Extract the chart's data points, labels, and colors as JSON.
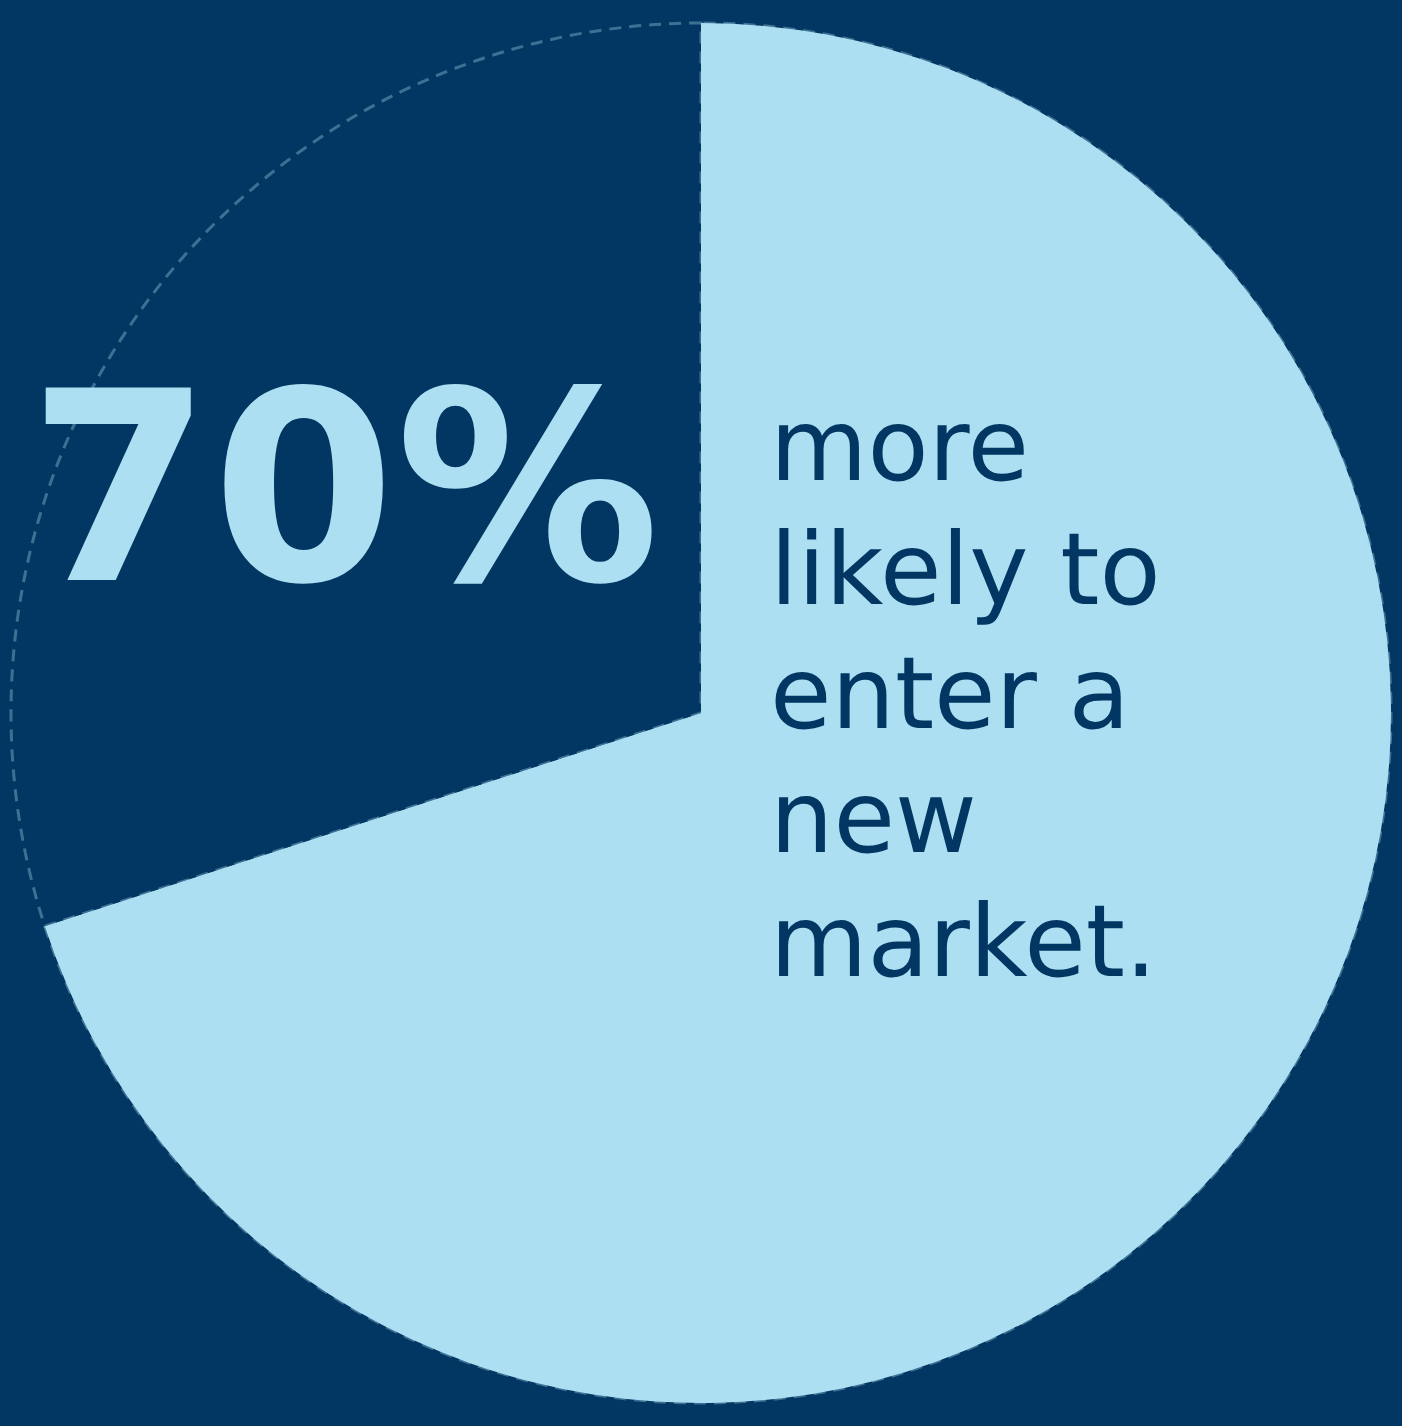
{
  "chart_data": {
    "type": "pie",
    "categories": [
      null,
      null
    ],
    "values": [
      70,
      30
    ],
    "colors": [
      "#addff2",
      "#033763"
    ],
    "annotations": [
      "70%",
      "more likely to enter a new market."
    ]
  }
}
